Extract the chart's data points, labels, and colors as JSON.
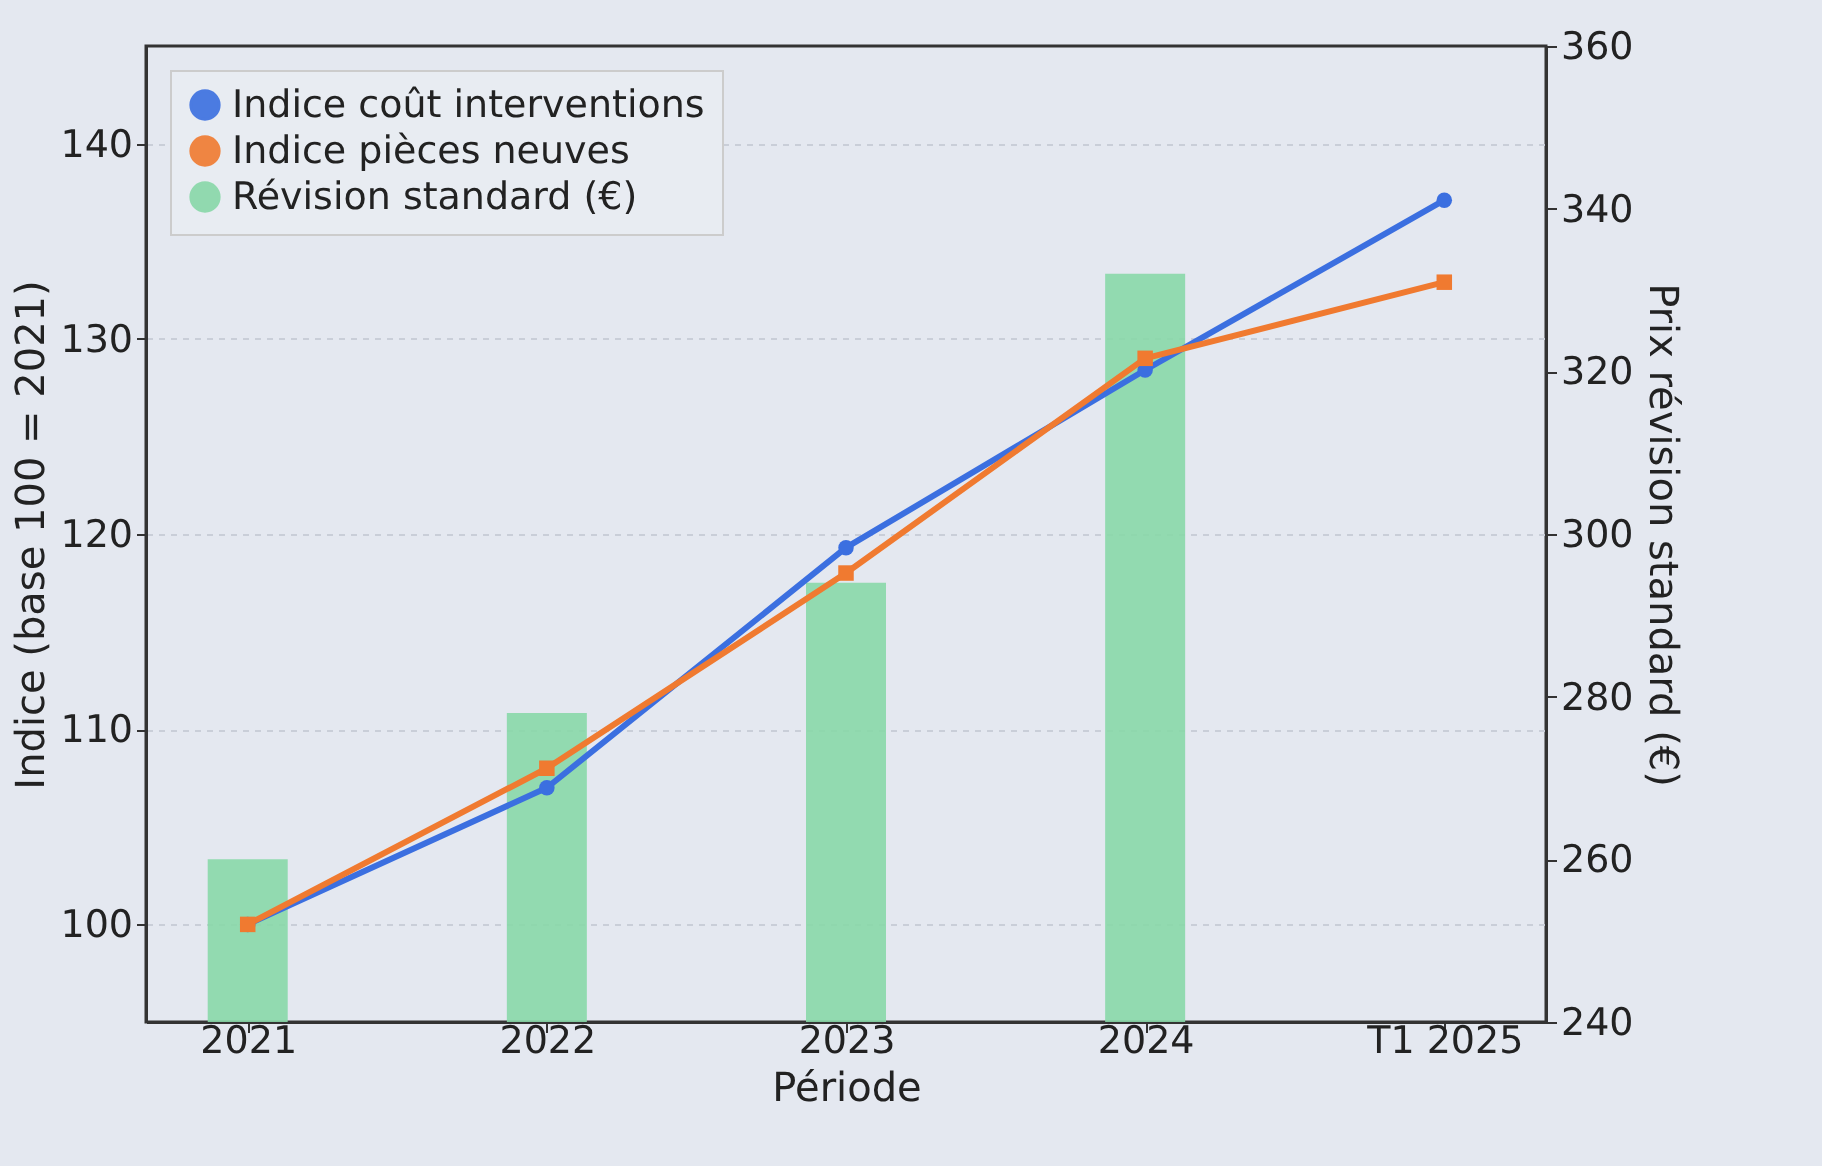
{
  "chart_data": {
    "type": "line",
    "xlabel": "Période",
    "ylabel": "Indice (base 100 = 2021)",
    "y2label": "Prix révision standard (€)",
    "categories": [
      "2021",
      "2022",
      "2023",
      "2024",
      "T1 2025"
    ],
    "series": [
      {
        "name": "Indice coût interventions",
        "color": "#3b6fe0",
        "marker": "circle",
        "values": [
          100,
          107.0,
          119.3,
          128.4,
          137.1
        ]
      },
      {
        "name": "Indice pièces neuves",
        "color": "#f07a30",
        "marker": "square",
        "values": [
          100,
          108.0,
          118.0,
          129.0,
          132.9
        ]
      },
      {
        "name": "Révision standard (€)",
        "type": "bar",
        "axis": "y2",
        "color": "#88d8a8",
        "values": [
          260,
          278,
          294,
          332,
          null
        ]
      }
    ],
    "ylim": [
      95,
      145
    ],
    "yticks": [
      100,
      110,
      120,
      130,
      140
    ],
    "y2lim": [
      240,
      360
    ],
    "y2ticks": [
      240,
      260,
      280,
      300,
      320,
      340,
      360
    ],
    "grid": "y",
    "legend": "top left"
  }
}
